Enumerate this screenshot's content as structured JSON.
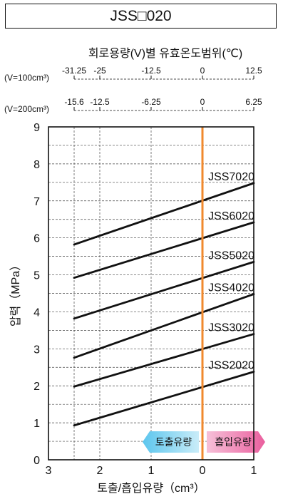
{
  "title": "JSS□020",
  "chart_data": {
    "type": "line",
    "top_axis_title": "회로용량(V)별 유효온도범위(℃)",
    "top_axes": [
      {
        "label": "(V=100cm³)",
        "ticks": [
          "-31.25",
          "-25",
          "-12.5",
          "0",
          "12.5"
        ],
        "positions": [
          -2.5,
          -2.0,
          -1.0,
          0.0,
          1.0
        ]
      },
      {
        "label": "(V=200cm³)",
        "ticks": [
          "-15.6",
          "-12.5",
          "-6.25",
          "0",
          "6.25"
        ],
        "positions": [
          -2.5,
          -2.0,
          -1.0,
          0.0,
          1.0
        ]
      }
    ],
    "xlabel": "토출/흡입유량（cm³）",
    "ylabel": "압력（MPa）",
    "xlim": [
      -3,
      1
    ],
    "ylim": [
      0,
      9
    ],
    "x_ticks": [
      {
        "value": -3,
        "label": "3"
      },
      {
        "value": -2,
        "label": "2"
      },
      {
        "value": -1,
        "label": "1"
      },
      {
        "value": 0,
        "label": "0"
      },
      {
        "value": 1,
        "label": "1"
      }
    ],
    "y_ticks": [
      "0",
      "1",
      "2",
      "3",
      "4",
      "5",
      "6",
      "7",
      "8",
      "9"
    ],
    "reference_line": {
      "x": 0,
      "color": "#f0892e"
    },
    "series": [
      {
        "name": "JSS2020",
        "x": [
          -2.5,
          1.0
        ],
        "y": [
          0.93,
          2.38
        ]
      },
      {
        "name": "JSS3020",
        "x": [
          -2.5,
          1.0
        ],
        "y": [
          1.98,
          3.4
        ]
      },
      {
        "name": "JSS4020",
        "x": [
          -2.5,
          1.0
        ],
        "y": [
          2.76,
          4.48
        ]
      },
      {
        "name": "JSS5020",
        "x": [
          -2.5,
          1.0
        ],
        "y": [
          3.82,
          5.35
        ]
      },
      {
        "name": "JSS6020",
        "x": [
          -2.5,
          1.0
        ],
        "y": [
          4.92,
          6.42
        ]
      },
      {
        "name": "JSS7020",
        "x": [
          -2.5,
          1.0
        ],
        "y": [
          5.82,
          7.48
        ]
      }
    ],
    "badges": [
      {
        "text": "토출유량",
        "color_from": "#5cc6ee",
        "color_to": "#c9ecf8"
      },
      {
        "text": "흡입유량",
        "color_from": "#f6c0d8",
        "color_to": "#ea5f9e"
      }
    ],
    "grid": true
  }
}
